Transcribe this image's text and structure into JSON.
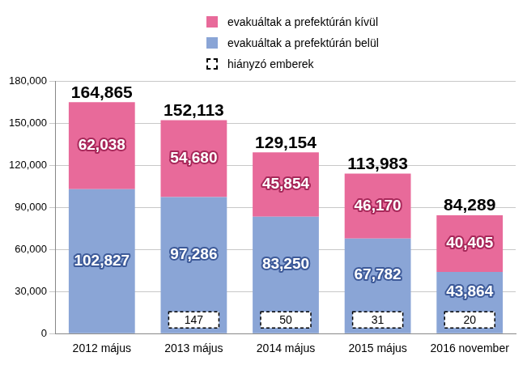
{
  "chart_data": {
    "type": "bar",
    "stacked": true,
    "data_labels": true,
    "grid": true,
    "legend": "top",
    "categories": [
      "2012 május",
      "2013 május",
      "2014 május",
      "2015 május",
      "2016 november"
    ],
    "series": [
      {
        "name": "evakuáltak a prefektúrán belül",
        "color": "#8aa5d6",
        "values": [
          102827,
          97286,
          83250,
          67782,
          43864
        ],
        "value_labels": [
          "102,827",
          "97,286",
          "83,250",
          "67,782",
          "43,864"
        ]
      },
      {
        "name": "evakuáltak a prefektúrán kívül",
        "color": "#e86a9a",
        "values": [
          62038,
          54680,
          45854,
          46170,
          40405
        ],
        "value_labels": [
          "62,038",
          "54,680",
          "45,854",
          "46,170",
          "40,405"
        ]
      }
    ],
    "totals": {
      "values": [
        164865,
        152113,
        129154,
        113983,
        84289
      ],
      "value_labels": [
        "164,865",
        "152,113",
        "129,154",
        "113,983",
        "84,289"
      ]
    },
    "missing": {
      "name": "hiányzó emberek",
      "values": [
        null,
        147,
        50,
        31,
        20
      ]
    },
    "ylim": [
      0,
      180000
    ],
    "yticks": [
      {
        "value": 0,
        "label": "0"
      },
      {
        "value": 30000,
        "label": "30,000"
      },
      {
        "value": 60000,
        "label": "60,000"
      },
      {
        "value": 90000,
        "label": "90,000"
      },
      {
        "value": 120000,
        "label": "120,000"
      },
      {
        "value": 150000,
        "label": "150,000"
      },
      {
        "value": 180000,
        "label": "180,000"
      }
    ]
  }
}
